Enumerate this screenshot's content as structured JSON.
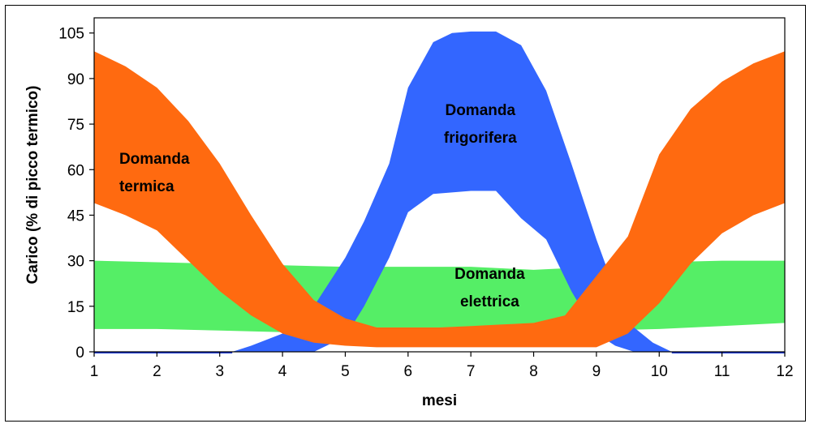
{
  "chart_data": {
    "type": "area",
    "xlabel": "mesi",
    "ylabel": "Carico (% di picco termico)",
    "xlim": [
      1,
      12
    ],
    "ylim": [
      0,
      110
    ],
    "x_ticks": [
      "1",
      "2",
      "3",
      "4",
      "5",
      "6",
      "7",
      "8",
      "9",
      "10",
      "11",
      "12"
    ],
    "y_ticks": [
      "0",
      "15",
      "30",
      "45",
      "60",
      "75",
      "90",
      "105"
    ],
    "grid": false,
    "colors": {
      "termica": "#ff6a10",
      "frigorifera": "#3366ff",
      "elettrica": "#55ee66",
      "baseline": "#1133cc"
    },
    "series": [
      {
        "name": "Domanda elettrica",
        "label_lines": [
          "Domanda",
          "elettrica"
        ],
        "color_key": "elettrica",
        "x": [
          1,
          2,
          3,
          4,
          5,
          6,
          7,
          8,
          9,
          10,
          11,
          12
        ],
        "upper": [
          30,
          29.5,
          29,
          28.5,
          28,
          28,
          28,
          27,
          28,
          29.5,
          30,
          30
        ],
        "lower": [
          7.5,
          7.5,
          7,
          6.5,
          7,
          7,
          7,
          7,
          7,
          7.5,
          8.5,
          9.5
        ]
      },
      {
        "name": "Domanda frigorifera",
        "label_lines": [
          "Domanda",
          "frigorifera"
        ],
        "color_key": "frigorifera",
        "x": [
          3.2,
          3.5,
          4.0,
          4.5,
          5.0,
          5.3,
          5.7,
          6.0,
          6.4,
          6.7,
          7.0,
          7.4,
          7.8,
          8.2,
          8.6,
          9.0,
          9.3,
          9.6,
          9.9,
          10.2
        ],
        "upper": [
          0,
          2,
          6,
          15,
          31,
          43,
          62,
          87,
          102,
          105,
          105.5,
          105.5,
          101,
          86,
          62,
          37,
          20,
          8,
          3,
          0
        ],
        "lower": [
          0,
          0,
          0,
          0,
          5,
          15,
          31,
          46,
          52,
          52.5,
          53,
          53,
          44,
          37,
          20,
          6,
          2,
          0,
          0,
          0
        ]
      },
      {
        "name": "Domanda termica",
        "label_lines": [
          "Domanda",
          "termica"
        ],
        "color_key": "termica",
        "x": [
          1,
          1.5,
          2,
          2.5,
          3,
          3.5,
          4,
          4.5,
          5,
          5.5,
          6,
          6.5,
          7,
          7.5,
          8,
          8.5,
          9,
          9.5,
          10,
          10.5,
          11,
          11.5,
          12
        ],
        "upper": [
          99,
          94,
          87,
          76,
          62,
          45,
          29,
          17,
          11,
          8,
          8,
          8,
          8.5,
          9,
          9.5,
          12,
          25,
          38,
          65,
          80,
          89,
          95,
          99
        ],
        "lower": [
          49,
          45,
          40,
          30,
          20,
          12,
          6,
          3,
          2,
          1.5,
          1.5,
          1.5,
          1.5,
          1.5,
          1.5,
          1.5,
          1.5,
          6,
          16,
          29,
          39,
          45,
          49
        ]
      }
    ]
  }
}
